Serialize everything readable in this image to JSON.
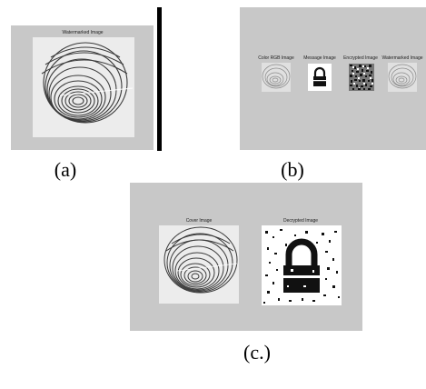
{
  "panel_a": {
    "title": "Watermarked Image",
    "caption": "(a)"
  },
  "panel_b": {
    "titles": [
      "Color RGB Image",
      "Message Image",
      "Encrypted Image",
      "Watermarked Image"
    ],
    "caption": "(b)"
  },
  "panel_c": {
    "titles": [
      "Cover Image",
      "Decrypted Image"
    ],
    "caption": "(c.)"
  },
  "colors": {
    "panel_bg": "#c8c8c8",
    "image_bg": "#ececec",
    "ridge": "#3a3a3a",
    "lock": "#111111"
  },
  "icons": {
    "fingerprint": "fingerprint-image",
    "lock": "padlock-image",
    "noise": "scrambled-noise-image"
  }
}
